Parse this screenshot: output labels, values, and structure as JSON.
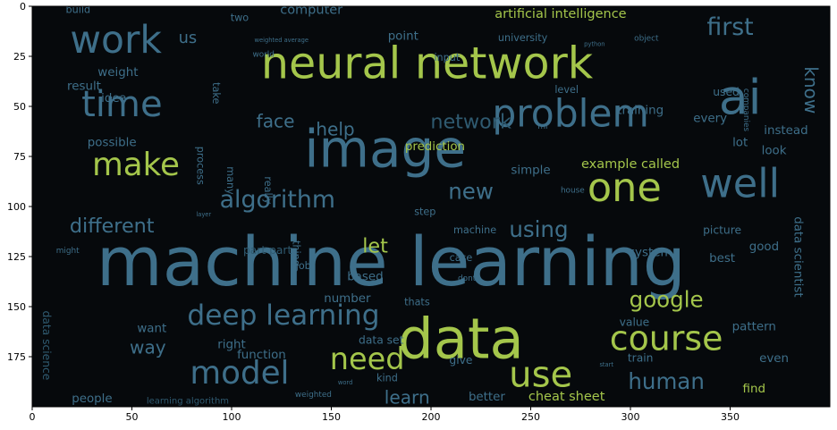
{
  "chart_data": {
    "type": "wordcloud-image",
    "xlim": [
      0,
      400
    ],
    "ylim": [
      200,
      0
    ],
    "xticks": [
      0,
      50,
      100,
      150,
      200,
      250,
      300,
      350
    ],
    "yticks": [
      0,
      25,
      50,
      75,
      100,
      125,
      150,
      175
    ],
    "background_color": "#06090c",
    "palette": {
      "green": "#a4c64b",
      "blue": "#3e6f8a",
      "olive": "#6f9a4a",
      "teal": "#2f5a70"
    },
    "words": [
      {
        "text": "machine learning",
        "x": 180,
        "y": 130,
        "size": 34,
        "color": "blue"
      },
      {
        "text": "neural network",
        "x": 198,
        "y": 30,
        "size": 22,
        "color": "green"
      },
      {
        "text": "image",
        "x": 177,
        "y": 73,
        "size": 26,
        "color": "blue"
      },
      {
        "text": "data",
        "x": 215,
        "y": 168,
        "size": 28,
        "color": "green"
      },
      {
        "text": "problem",
        "x": 270,
        "y": 55,
        "size": 19,
        "color": "blue"
      },
      {
        "text": "ai",
        "x": 355,
        "y": 47,
        "size": 24,
        "color": "blue"
      },
      {
        "text": "one",
        "x": 297,
        "y": 92,
        "size": 20,
        "color": "green"
      },
      {
        "text": "well",
        "x": 355,
        "y": 90,
        "size": 20,
        "color": "blue"
      },
      {
        "text": "work",
        "x": 42,
        "y": 18,
        "size": 19,
        "color": "blue"
      },
      {
        "text": "time",
        "x": 45,
        "y": 50,
        "size": 18,
        "color": "blue"
      },
      {
        "text": "make",
        "x": 52,
        "y": 80,
        "size": 16,
        "color": "green"
      },
      {
        "text": "use",
        "x": 255,
        "y": 185,
        "size": 18,
        "color": "green"
      },
      {
        "text": "course",
        "x": 318,
        "y": 167,
        "size": 17,
        "color": "green"
      },
      {
        "text": "model",
        "x": 104,
        "y": 184,
        "size": 16,
        "color": "blue"
      },
      {
        "text": "need",
        "x": 168,
        "y": 177,
        "size": 15,
        "color": "green"
      },
      {
        "text": "deep learning",
        "x": 126,
        "y": 155,
        "size": 14,
        "color": "blue"
      },
      {
        "text": "algorithm",
        "x": 123,
        "y": 97,
        "size": 12,
        "color": "blue"
      },
      {
        "text": "different",
        "x": 40,
        "y": 110,
        "size": 10,
        "color": "blue"
      },
      {
        "text": "face",
        "x": 122,
        "y": 58,
        "size": 9,
        "color": "blue"
      },
      {
        "text": "help",
        "x": 152,
        "y": 62,
        "size": 9,
        "color": "blue"
      },
      {
        "text": "network",
        "x": 220,
        "y": 58,
        "size": 10,
        "color": "teal"
      },
      {
        "text": "new",
        "x": 220,
        "y": 93,
        "size": 11,
        "color": "blue"
      },
      {
        "text": "using",
        "x": 254,
        "y": 112,
        "size": 11,
        "color": "blue"
      },
      {
        "text": "first",
        "x": 350,
        "y": 11,
        "size": 12,
        "color": "blue"
      },
      {
        "text": "know",
        "x": 390,
        "y": 30,
        "size": 9,
        "color": "blue",
        "rotate": 90
      },
      {
        "text": "human",
        "x": 318,
        "y": 188,
        "size": 11,
        "color": "blue"
      },
      {
        "text": "google",
        "x": 318,
        "y": 147,
        "size": 11,
        "color": "green"
      },
      {
        "text": "learn",
        "x": 188,
        "y": 196,
        "size": 9,
        "color": "blue"
      },
      {
        "text": "let",
        "x": 172,
        "y": 120,
        "size": 10,
        "color": "green"
      },
      {
        "text": "way",
        "x": 58,
        "y": 171,
        "size": 9,
        "color": "blue"
      },
      {
        "text": "artificial intelligence",
        "x": 265,
        "y": 4,
        "size": 6.5,
        "color": "green"
      },
      {
        "text": "computer",
        "x": 140,
        "y": 2,
        "size": 6.5,
        "color": "blue"
      },
      {
        "text": "us",
        "x": 78,
        "y": 16,
        "size": 8,
        "color": "blue"
      },
      {
        "text": "point",
        "x": 186,
        "y": 15,
        "size": 6,
        "color": "blue"
      },
      {
        "text": "university",
        "x": 246,
        "y": 16,
        "size": 5,
        "color": "blue"
      },
      {
        "text": "input",
        "x": 208,
        "y": 26,
        "size": 5,
        "color": "blue"
      },
      {
        "text": "prediction",
        "x": 202,
        "y": 70,
        "size": 6,
        "color": "green"
      },
      {
        "text": "training",
        "x": 305,
        "y": 52,
        "size": 6,
        "color": "blue"
      },
      {
        "text": "level",
        "x": 268,
        "y": 42,
        "size": 5,
        "color": "blue"
      },
      {
        "text": "weight",
        "x": 43,
        "y": 33,
        "size": 6,
        "color": "blue"
      },
      {
        "text": "result",
        "x": 26,
        "y": 40,
        "size": 6,
        "color": "blue"
      },
      {
        "text": "idea",
        "x": 41,
        "y": 46,
        "size": 6,
        "color": "blue"
      },
      {
        "text": "build",
        "x": 23,
        "y": 2,
        "size": 5,
        "color": "blue"
      },
      {
        "text": "possible",
        "x": 40,
        "y": 68,
        "size": 6,
        "color": "blue"
      },
      {
        "text": "process",
        "x": 84,
        "y": 70,
        "size": 5,
        "color": "blue",
        "rotate": 90
      },
      {
        "text": "example called",
        "x": 300,
        "y": 79,
        "size": 6.5,
        "color": "green"
      },
      {
        "text": "simple",
        "x": 250,
        "y": 82,
        "size": 6,
        "color": "blue"
      },
      {
        "text": "look",
        "x": 372,
        "y": 72,
        "size": 6,
        "color": "blue"
      },
      {
        "text": "lot",
        "x": 355,
        "y": 68,
        "size": 6,
        "color": "blue"
      },
      {
        "text": "every",
        "x": 340,
        "y": 56,
        "size": 6,
        "color": "blue"
      },
      {
        "text": "instead",
        "x": 378,
        "y": 62,
        "size": 6,
        "color": "blue"
      },
      {
        "text": "data scientist",
        "x": 384,
        "y": 105,
        "size": 6,
        "color": "blue",
        "rotate": 90
      },
      {
        "text": "system",
        "x": 310,
        "y": 123,
        "size": 6,
        "color": "blue"
      },
      {
        "text": "best",
        "x": 346,
        "y": 126,
        "size": 6,
        "color": "blue"
      },
      {
        "text": "good",
        "x": 367,
        "y": 120,
        "size": 6,
        "color": "blue"
      },
      {
        "text": "picture",
        "x": 346,
        "y": 112,
        "size": 5.5,
        "color": "blue"
      },
      {
        "text": "part part",
        "x": 118,
        "y": 122,
        "size": 5.5,
        "color": "teal"
      },
      {
        "text": "machine",
        "x": 222,
        "y": 112,
        "size": 5,
        "color": "blue"
      },
      {
        "text": "case",
        "x": 215,
        "y": 126,
        "size": 5,
        "color": "blue"
      },
      {
        "text": "based",
        "x": 167,
        "y": 135,
        "size": 6,
        "color": "blue"
      },
      {
        "text": "job",
        "x": 136,
        "y": 130,
        "size": 5,
        "color": "blue"
      },
      {
        "text": "number",
        "x": 158,
        "y": 146,
        "size": 6,
        "color": "blue"
      },
      {
        "text": "thats",
        "x": 193,
        "y": 148,
        "size": 5,
        "color": "blue"
      },
      {
        "text": "value",
        "x": 302,
        "y": 158,
        "size": 5.5,
        "color": "blue"
      },
      {
        "text": "pattern",
        "x": 362,
        "y": 160,
        "size": 6,
        "color": "blue"
      },
      {
        "text": "function",
        "x": 115,
        "y": 174,
        "size": 6,
        "color": "blue"
      },
      {
        "text": "data set",
        "x": 175,
        "y": 167,
        "size": 5.5,
        "color": "blue"
      },
      {
        "text": "right",
        "x": 100,
        "y": 169,
        "size": 6,
        "color": "blue"
      },
      {
        "text": "want",
        "x": 60,
        "y": 161,
        "size": 6,
        "color": "blue"
      },
      {
        "text": "data science",
        "x": 7,
        "y": 152,
        "size": 5.5,
        "color": "teal",
        "rotate": 90
      },
      {
        "text": "people",
        "x": 30,
        "y": 196,
        "size": 6,
        "color": "blue"
      },
      {
        "text": "give",
        "x": 215,
        "y": 177,
        "size": 5.5,
        "color": "blue"
      },
      {
        "text": "kind",
        "x": 178,
        "y": 186,
        "size": 5,
        "color": "blue"
      },
      {
        "text": "train",
        "x": 305,
        "y": 176,
        "size": 5.5,
        "color": "blue"
      },
      {
        "text": "even",
        "x": 372,
        "y": 176,
        "size": 6,
        "color": "blue"
      },
      {
        "text": "find",
        "x": 362,
        "y": 191,
        "size": 6,
        "color": "green"
      },
      {
        "text": "better",
        "x": 228,
        "y": 195,
        "size": 6,
        "color": "blue"
      },
      {
        "text": "cheat sheet",
        "x": 268,
        "y": 195,
        "size": 6.5,
        "color": "green"
      },
      {
        "text": "many",
        "x": 99,
        "y": 80,
        "size": 5,
        "color": "blue",
        "rotate": 90
      },
      {
        "text": "really",
        "x": 118,
        "y": 85,
        "size": 5,
        "color": "blue",
        "rotate": 90
      },
      {
        "text": "take",
        "x": 92,
        "y": 38,
        "size": 5,
        "color": "blue",
        "rotate": 90
      },
      {
        "text": "thing",
        "x": 132,
        "y": 117,
        "size": 5,
        "color": "blue",
        "rotate": 90
      },
      {
        "text": "two",
        "x": 104,
        "y": 6,
        "size": 5,
        "color": "blue"
      },
      {
        "text": "world",
        "x": 116,
        "y": 24,
        "size": 4,
        "color": "blue"
      },
      {
        "text": "used",
        "x": 348,
        "y": 43,
        "size": 5.5,
        "color": "blue"
      },
      {
        "text": "object",
        "x": 308,
        "y": 16,
        "size": 4,
        "color": "blue"
      },
      {
        "text": "step",
        "x": 197,
        "y": 103,
        "size": 5,
        "color": "blue"
      },
      {
        "text": "house",
        "x": 271,
        "y": 92,
        "size": 4,
        "color": "blue"
      },
      {
        "text": "companies",
        "x": 358,
        "y": 41,
        "size": 4,
        "color": "blue",
        "rotate": 90
      },
      {
        "text": "dont",
        "x": 218,
        "y": 136,
        "size": 4,
        "color": "blue"
      },
      {
        "text": "might",
        "x": 12,
        "y": 122,
        "size": 4,
        "color": "blue"
      },
      {
        "text": "learning algorithm",
        "x": 78,
        "y": 197,
        "size": 4.5,
        "color": "teal"
      },
      {
        "text": "weighted",
        "x": 141,
        "y": 194,
        "size": 4,
        "color": "blue"
      },
      {
        "text": "ml",
        "x": 256,
        "y": 60,
        "size": 4,
        "color": "blue"
      },
      {
        "text": "python",
        "x": 282,
        "y": 19,
        "size": 3,
        "color": "blue"
      },
      {
        "text": "start",
        "x": 288,
        "y": 179,
        "size": 3,
        "color": "blue"
      },
      {
        "text": "layer",
        "x": 86,
        "y": 104,
        "size": 3,
        "color": "blue"
      },
      {
        "text": "weighted average",
        "x": 125,
        "y": 17,
        "size": 3,
        "color": "blue"
      },
      {
        "text": "word",
        "x": 157,
        "y": 188,
        "size": 3,
        "color": "blue"
      }
    ]
  }
}
